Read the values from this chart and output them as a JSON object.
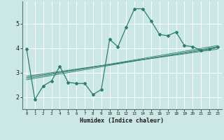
{
  "xlabel": "Humidex (Indice chaleur)",
  "bg_color": "#cce8e6",
  "grid_color": "#ffffff",
  "line_color": "#2e7d6e",
  "xlim": [
    -0.5,
    23.5
  ],
  "ylim": [
    1.5,
    5.9
  ],
  "xtick_labels": [
    "0",
    "1",
    "2",
    "3",
    "4",
    "5",
    "6",
    "7",
    "8",
    "9",
    "10",
    "11",
    "12",
    "13",
    "14",
    "15",
    "16",
    "17",
    "18",
    "19",
    "20",
    "21",
    "22",
    "23"
  ],
  "ytick_values": [
    2,
    3,
    4,
    5
  ],
  "main_x": [
    0,
    1,
    2,
    3,
    4,
    5,
    6,
    7,
    8,
    9,
    10,
    11,
    12,
    13,
    14,
    15,
    16,
    17,
    18,
    19,
    20,
    21,
    22,
    23
  ],
  "main_y": [
    3.95,
    1.9,
    2.45,
    2.65,
    3.25,
    2.6,
    2.55,
    2.55,
    2.1,
    2.3,
    4.35,
    4.05,
    4.85,
    5.6,
    5.6,
    5.1,
    4.55,
    4.5,
    4.65,
    4.1,
    4.05,
    3.9,
    3.95,
    4.05
  ],
  "linear_lines": [
    {
      "x": [
        0,
        23
      ],
      "y": [
        2.7,
        4.05
      ]
    },
    {
      "x": [
        0,
        23
      ],
      "y": [
        2.8,
        4.0
      ]
    },
    {
      "x": [
        0,
        23
      ],
      "y": [
        2.85,
        3.95
      ]
    },
    {
      "x": [
        0,
        23
      ],
      "y": [
        2.75,
        4.1
      ]
    }
  ]
}
